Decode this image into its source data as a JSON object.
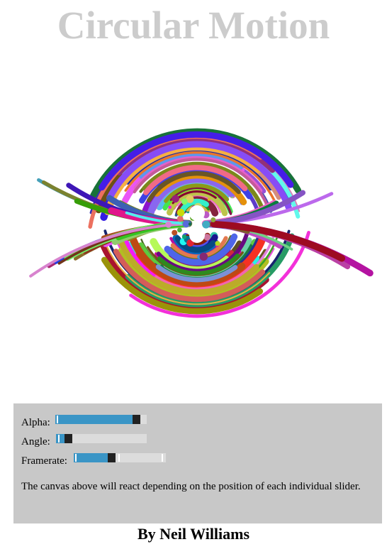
{
  "header": {
    "title": "Circular Motion"
  },
  "controls": {
    "alpha": {
      "label": "Alpha:",
      "value": 0.92
    },
    "angle": {
      "label": "Angle:",
      "value": 0.1
    },
    "framerate": {
      "label": "Framerate:",
      "value": 0.4
    },
    "description": "The canvas above will react depending on the position of each individual slider."
  },
  "footer": {
    "author": "By Neil Williams"
  }
}
